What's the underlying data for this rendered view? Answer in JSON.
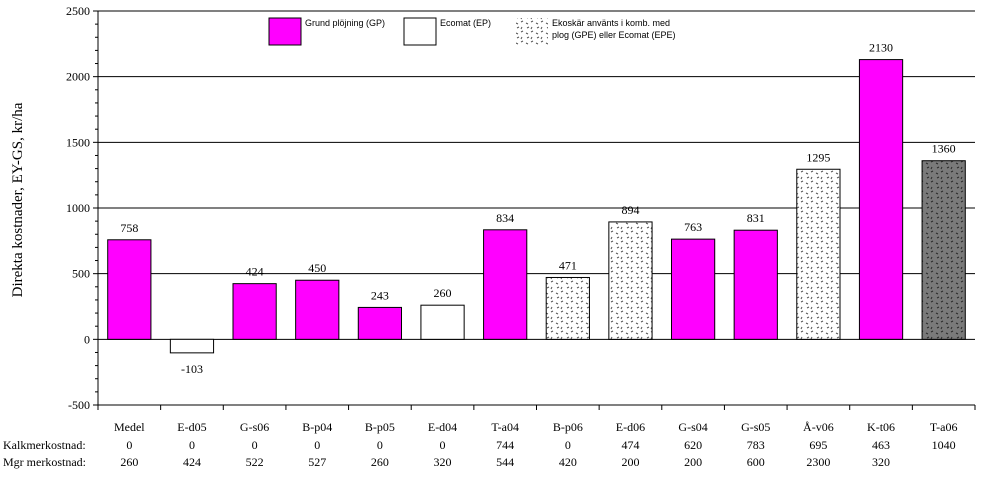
{
  "chart_data": {
    "type": "bar",
    "ylabel": "Direkta kostnader, EY-GS, kr/ha",
    "ylim": [
      -500,
      2500
    ],
    "yticks": [
      -500,
      0,
      500,
      1000,
      1500,
      2000,
      2500
    ],
    "grid": true,
    "categories": [
      "Medel",
      "E-d05",
      "G-s06",
      "B-p04",
      "B-p05",
      "E-d04",
      "T-a04",
      "B-p06",
      "E-d06",
      "G-s04",
      "G-s05",
      "Å-v06",
      "K-t06",
      "T-a06"
    ],
    "values": [
      758,
      -103,
      424,
      450,
      243,
      260,
      834,
      471,
      894,
      763,
      831,
      1295,
      2130,
      1360
    ],
    "value_labels": [
      "758",
      "-103",
      "424",
      "450",
      "243",
      "260",
      "834",
      "471",
      "894",
      "763",
      "831",
      "1295",
      "2130",
      "1360"
    ],
    "bar_types": [
      "GP",
      "EP",
      "GP",
      "GP",
      "GP",
      "EP",
      "GP",
      "GPE",
      "GPE",
      "GP",
      "GP",
      "GPE",
      "GP",
      "EPE"
    ],
    "legend": {
      "placement": "top",
      "entries": [
        {
          "key": "GP",
          "label": "Grund plöjning (GP)"
        },
        {
          "key": "EP",
          "label": "Ecomat (EP)"
        },
        {
          "key": "GPE",
          "label_line1": "Ekoskär använts i komb. med",
          "label_line2": "plog (GPE) eller Ecomat (EPE)"
        }
      ]
    },
    "colors": {
      "GP": "#ff00ff",
      "EP": "#ffffff",
      "GPE": "#ffffff",
      "EPE": "#808080"
    },
    "table_rows": [
      {
        "label": "Kalkmerkostnad:",
        "values": [
          "0",
          "0",
          "0",
          "0",
          "0",
          "0",
          "744",
          "0",
          "474",
          "620",
          "783",
          "695",
          "463",
          "1040"
        ]
      },
      {
        "label": "Mgr merkostnad:",
        "values": [
          "260",
          "424",
          "522",
          "527",
          "260",
          "320",
          "544",
          "420",
          "200",
          "200",
          "600",
          "2300",
          "320",
          ""
        ]
      }
    ]
  }
}
